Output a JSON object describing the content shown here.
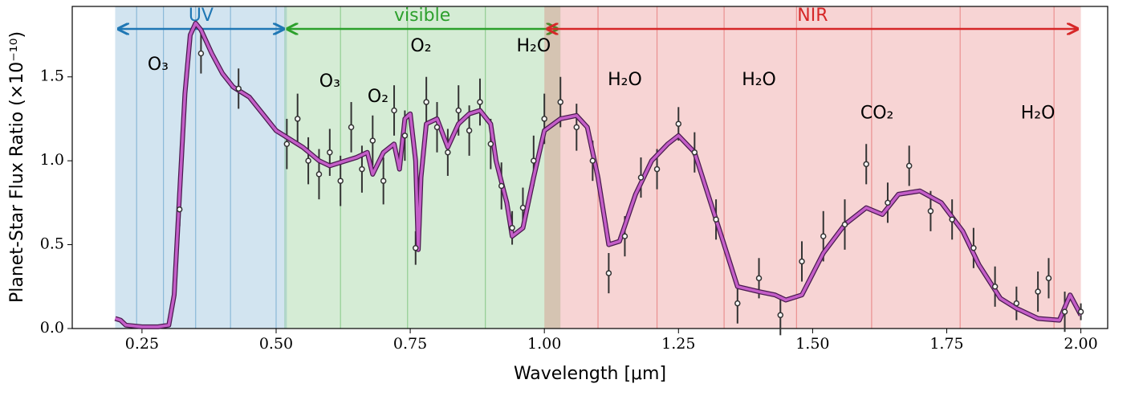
{
  "chart_data": {
    "type": "line",
    "xlabel": "Wavelength [μm]",
    "ylabel": "Planet-Star Flux Ratio (×10⁻¹⁰)",
    "xlim": [
      0.12,
      2.05
    ],
    "ylim": [
      0,
      1.92
    ],
    "xticks": [
      0.25,
      {
        "value": 0.5,
        "label": "0.50"
      },
      0.75,
      {
        "value": 1,
        "label": "1.00"
      },
      1.25,
      {
        "value": 1.5,
        "label": "1.50"
      },
      1.75,
      {
        "value": 2,
        "label": "2.00"
      }
    ],
    "yticks": [
      {
        "value": 0,
        "label": "0.0"
      },
      {
        "value": 0.5,
        "label": "0.5"
      },
      {
        "value": 1,
        "label": "1.0"
      },
      {
        "value": 1.5,
        "label": "1.5"
      }
    ],
    "bands": [
      {
        "label": "UV",
        "color": "#1f77b4",
        "range": [
          0.2,
          0.52
        ],
        "edges": [
          0.24,
          0.29,
          0.35,
          0.415,
          0.5
        ]
      },
      {
        "label": "visible",
        "color": "#2ca02c",
        "range": [
          0.515,
          1.03
        ],
        "edges": [
          0.62,
          0.745,
          0.89
        ]
      },
      {
        "label": "NIR",
        "color": "#d62728",
        "range": [
          1.0,
          2.0
        ],
        "edges": [
          1.1,
          1.21,
          1.335,
          1.47,
          1.61,
          1.775,
          1.95
        ]
      }
    ],
    "annotations": [
      {
        "text": "O₃",
        "x": 0.28,
        "y": 1.57
      },
      {
        "text": "O₃",
        "x": 0.6,
        "y": 1.47
      },
      {
        "text": "O₂",
        "x": 0.69,
        "y": 1.38
      },
      {
        "text": "O₂",
        "x": 0.77,
        "y": 1.68
      },
      {
        "text": "H₂O",
        "x": 0.98,
        "y": 1.68
      },
      {
        "text": "H₂O",
        "x": 1.15,
        "y": 1.48
      },
      {
        "text": "H₂O",
        "x": 1.4,
        "y": 1.48
      },
      {
        "text": "CO₂",
        "x": 1.62,
        "y": 1.28
      },
      {
        "text": "H₂O",
        "x": 1.92,
        "y": 1.28
      }
    ],
    "model": {
      "color": "#c45ec8",
      "edge_color": "#4a1a4f",
      "x": [
        0.2,
        0.21,
        0.22,
        0.25,
        0.28,
        0.3,
        0.31,
        0.32,
        0.33,
        0.34,
        0.35,
        0.36,
        0.38,
        0.4,
        0.42,
        0.45,
        0.48,
        0.5,
        0.52,
        0.55,
        0.58,
        0.6,
        0.63,
        0.65,
        0.67,
        0.68,
        0.7,
        0.72,
        0.73,
        0.74,
        0.75,
        0.76,
        0.765,
        0.77,
        0.78,
        0.8,
        0.82,
        0.84,
        0.86,
        0.88,
        0.9,
        0.91,
        0.93,
        0.94,
        0.96,
        0.98,
        1.0,
        1.03,
        1.06,
        1.08,
        1.1,
        1.12,
        1.14,
        1.17,
        1.2,
        1.23,
        1.25,
        1.28,
        1.3,
        1.33,
        1.36,
        1.4,
        1.43,
        1.45,
        1.48,
        1.52,
        1.56,
        1.6,
        1.63,
        1.66,
        1.7,
        1.74,
        1.78,
        1.81,
        1.85,
        1.88,
        1.92,
        1.96,
        1.98,
        2.0
      ],
      "values": [
        0.06,
        0.05,
        0.02,
        0.01,
        0.01,
        0.02,
        0.2,
        0.8,
        1.4,
        1.75,
        1.82,
        1.78,
        1.64,
        1.52,
        1.44,
        1.38,
        1.26,
        1.18,
        1.14,
        1.08,
        1.0,
        0.97,
        1.0,
        1.02,
        1.05,
        0.92,
        1.05,
        1.1,
        0.95,
        1.25,
        1.28,
        1.0,
        0.47,
        0.9,
        1.22,
        1.25,
        1.08,
        1.22,
        1.28,
        1.3,
        1.22,
        1.0,
        0.75,
        0.55,
        0.6,
        0.9,
        1.18,
        1.25,
        1.27,
        1.2,
        0.9,
        0.5,
        0.52,
        0.8,
        1.0,
        1.1,
        1.15,
        1.05,
        0.85,
        0.55,
        0.25,
        0.22,
        0.2,
        0.17,
        0.2,
        0.45,
        0.62,
        0.72,
        0.68,
        0.8,
        0.82,
        0.75,
        0.58,
        0.38,
        0.18,
        0.12,
        0.06,
        0.05,
        0.2,
        0.08
      ]
    },
    "observed": {
      "color": "#333333",
      "x": [
        0.32,
        0.36,
        0.43,
        0.52,
        0.54,
        0.56,
        0.58,
        0.6,
        0.62,
        0.64,
        0.66,
        0.68,
        0.7,
        0.72,
        0.74,
        0.76,
        0.78,
        0.8,
        0.82,
        0.84,
        0.86,
        0.88,
        0.9,
        0.92,
        0.94,
        0.96,
        0.98,
        1.0,
        1.03,
        1.06,
        1.09,
        1.12,
        1.15,
        1.18,
        1.21,
        1.25,
        1.28,
        1.32,
        1.36,
        1.4,
        1.44,
        1.48,
        1.52,
        1.56,
        1.6,
        1.64,
        1.68,
        1.72,
        1.76,
        1.8,
        1.84,
        1.88,
        1.92,
        1.94,
        1.97,
        2.0
      ],
      "values": [
        0.71,
        1.64,
        1.43,
        1.1,
        1.25,
        1.0,
        0.92,
        1.05,
        0.88,
        1.2,
        0.95,
        1.12,
        0.88,
        1.3,
        1.15,
        0.48,
        1.35,
        1.2,
        1.05,
        1.3,
        1.18,
        1.35,
        1.1,
        0.85,
        0.6,
        0.72,
        1.0,
        1.25,
        1.35,
        1.2,
        1.0,
        0.33,
        0.55,
        0.9,
        0.95,
        1.22,
        1.05,
        0.65,
        0.15,
        0.3,
        0.08,
        0.4,
        0.55,
        0.62,
        0.98,
        0.75,
        0.97,
        0.7,
        0.65,
        0.48,
        0.25,
        0.15,
        0.22,
        0.3,
        0.1,
        0.1
      ],
      "errors": [
        0.1,
        0.12,
        0.12,
        0.15,
        0.15,
        0.14,
        0.15,
        0.14,
        0.15,
        0.15,
        0.14,
        0.15,
        0.14,
        0.15,
        0.15,
        0.1,
        0.15,
        0.15,
        0.14,
        0.15,
        0.15,
        0.14,
        0.15,
        0.14,
        0.1,
        0.12,
        0.15,
        0.15,
        0.15,
        0.14,
        0.12,
        0.12,
        0.12,
        0.12,
        0.12,
        0.1,
        0.12,
        0.12,
        0.12,
        0.12,
        0.12,
        0.12,
        0.15,
        0.15,
        0.12,
        0.12,
        0.12,
        0.12,
        0.12,
        0.12,
        0.12,
        0.1,
        0.12,
        0.12,
        0.12,
        0.05
      ]
    }
  }
}
